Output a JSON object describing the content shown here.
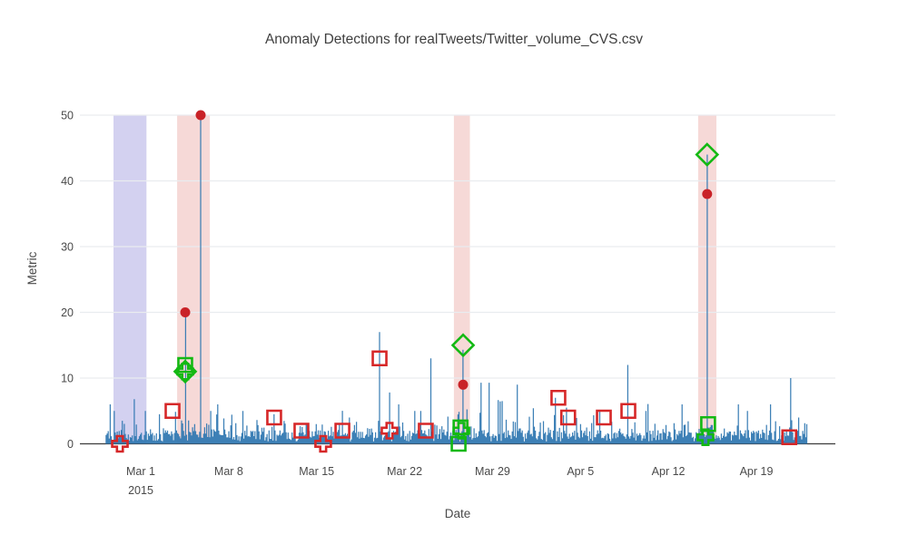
{
  "title": "Anomaly Detections for realTweets/Twitter_volume_CVS.csv",
  "axes": {
    "x_title": "Date",
    "y_title": "Metric"
  },
  "chart_data": {
    "type": "line",
    "title": "Anomaly Detections for realTweets/Twitter_volume_CVS.csv",
    "xlabel": "Date",
    "ylabel": "Metric",
    "ylim": [
      0,
      50
    ],
    "grid": true,
    "legend": "none",
    "x_axis_note": "day offsets relative to Mar 1 2015 tick",
    "x_range_days": [
      -4.84,
      55.3
    ],
    "series_span_days": [
      -2.75,
      52.97
    ],
    "y_ticks": [
      0,
      10,
      20,
      30,
      40,
      50
    ],
    "x_ticks": [
      {
        "day": 0,
        "label": "Mar 1",
        "sublabel": "2015"
      },
      {
        "day": 7,
        "label": "Mar 8"
      },
      {
        "day": 14,
        "label": "Mar 15"
      },
      {
        "day": 21,
        "label": "Mar 22"
      },
      {
        "day": 28,
        "label": "Mar 29"
      },
      {
        "day": 35,
        "label": "Apr 5"
      },
      {
        "day": 42,
        "label": "Apr 12"
      },
      {
        "day": 49,
        "label": "Apr 19"
      }
    ],
    "series": {
      "name": "metric",
      "color": "#3379b2",
      "start_day": -2.75,
      "end_day": 52.97,
      "step_day": 0.08,
      "noise_seed": 11,
      "baseline_range": [
        0.3,
        3.5
      ]
    },
    "spikes": [
      [
        -2.4,
        6
      ],
      [
        -2.1,
        5
      ],
      [
        -1.5,
        3.5
      ],
      [
        -0.55,
        6.8
      ],
      [
        0.35,
        5
      ],
      [
        1.45,
        4.5
      ],
      [
        3.54,
        20
      ],
      [
        4.77,
        50
      ],
      [
        5.6,
        5
      ],
      [
        6.1,
        6
      ],
      [
        8.1,
        5
      ],
      [
        10.62,
        4.5
      ],
      [
        13.2,
        3
      ],
      [
        16.6,
        4
      ],
      [
        19.01,
        17
      ],
      [
        19.8,
        7.8
      ],
      [
        20.5,
        6
      ],
      [
        21.8,
        5
      ],
      [
        22.3,
        5
      ],
      [
        23.1,
        13
      ],
      [
        25.66,
        14.3
      ],
      [
        27.1,
        9.3
      ],
      [
        27.7,
        9.3
      ],
      [
        28.8,
        6.5
      ],
      [
        30.0,
        9
      ],
      [
        33.0,
        7
      ],
      [
        33.9,
        5.5
      ],
      [
        36.5,
        5
      ],
      [
        38.8,
        12
      ],
      [
        40.2,
        5
      ],
      [
        43.1,
        6
      ],
      [
        45.08,
        44
      ],
      [
        47.6,
        6
      ],
      [
        48.3,
        5
      ],
      [
        50.1,
        6
      ],
      [
        51.72,
        10
      ],
      [
        52.4,
        4
      ]
    ],
    "bands": [
      {
        "from": -2.17,
        "to": 0.45,
        "color": "#a8a3e2",
        "opacity": 0.5
      },
      {
        "from": 2.9,
        "to": 5.5,
        "color": "#eeb4b0",
        "opacity": 0.5
      },
      {
        "from": 24.93,
        "to": 26.2,
        "color": "#eeb4b0",
        "opacity": 0.5
      },
      {
        "from": 44.37,
        "to": 45.82,
        "color": "#eeb4b0",
        "opacity": 0.5
      }
    ],
    "markers": [
      {
        "name": "green-diamond",
        "shape": "diamond",
        "color": "#13b913",
        "size": 20,
        "points": [
          [
            3.54,
            11
          ],
          [
            25.66,
            15
          ],
          [
            45.08,
            44
          ]
        ]
      },
      {
        "name": "green-square",
        "shape": "square",
        "color": "#13b913",
        "size": 15,
        "points": [
          [
            3.54,
            12
          ],
          [
            25.45,
            2.5
          ],
          [
            25.3,
            0
          ],
          [
            45.16,
            3
          ]
        ]
      },
      {
        "name": "green-cross",
        "shape": "cross",
        "color": "#13b913",
        "size": 17,
        "points": [
          [
            3.54,
            11
          ],
          [
            25.52,
            2
          ],
          [
            44.95,
            1
          ]
        ]
      },
      {
        "name": "red-square",
        "shape": "square",
        "color": "#d62728",
        "size": 15,
        "points": [
          [
            2.53,
            5
          ],
          [
            10.62,
            4
          ],
          [
            12.79,
            2
          ],
          [
            16.05,
            2
          ],
          [
            19.01,
            13
          ],
          [
            22.69,
            2
          ],
          [
            33.24,
            7
          ],
          [
            34.02,
            4
          ],
          [
            36.86,
            4
          ],
          [
            38.81,
            5
          ],
          [
            51.62,
            1
          ]
        ]
      },
      {
        "name": "red-cross",
        "shape": "cross",
        "color": "#d62728",
        "size": 17,
        "points": [
          [
            -1.66,
            0
          ],
          [
            14.52,
            0
          ],
          [
            19.8,
            2
          ]
        ]
      },
      {
        "name": "red-dot",
        "shape": "circle",
        "color": "#c92227",
        "size": 11,
        "points": [
          [
            3.54,
            20
          ],
          [
            4.77,
            50
          ],
          [
            25.66,
            9
          ],
          [
            45.08,
            38
          ]
        ]
      }
    ],
    "colors": {
      "series_blue": "#3379b2",
      "anomaly_red": "#d62728",
      "detection_green": "#13b913",
      "window_pink": "#f7dad8",
      "probation_purple": "#d4d1f0",
      "gridline": "#e9ecef",
      "zero_line": "#3c3c3c"
    }
  }
}
